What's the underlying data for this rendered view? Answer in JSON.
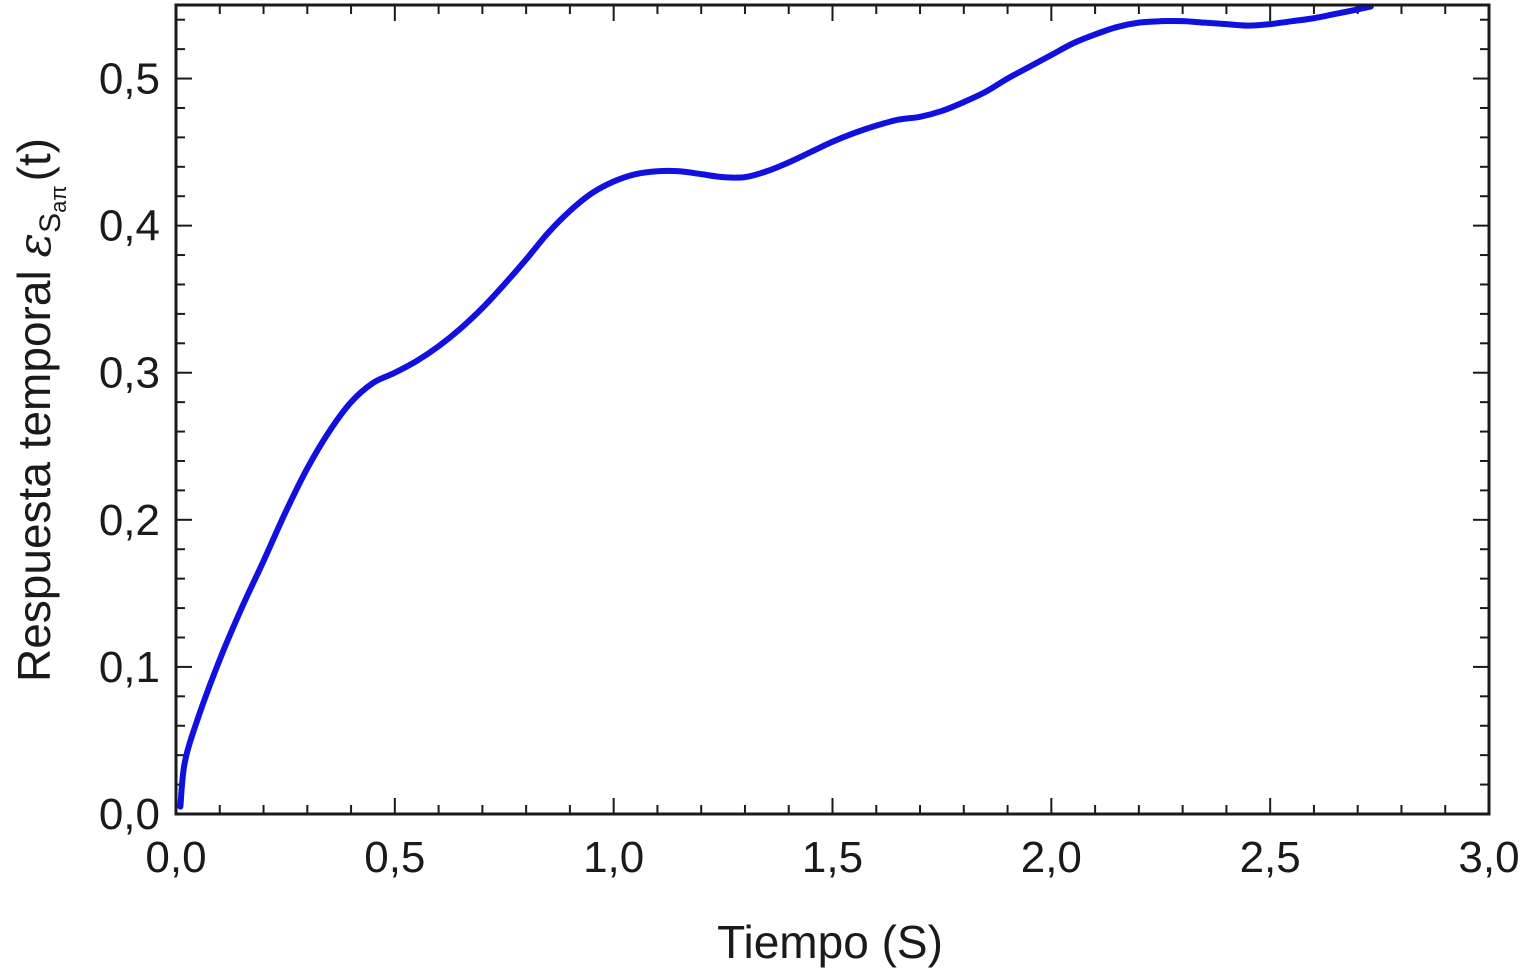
{
  "chart_data": {
    "type": "line",
    "xlabel": "Tiempo  (S)",
    "ylabel": {
      "prefix": "Respuesta temporal ",
      "symbol": "ε",
      "sub": "S",
      "subsub": "aπ",
      "suffix": "(t)"
    },
    "xlim": [
      0,
      3.0
    ],
    "ylim": [
      0,
      0.55
    ],
    "xticks": [
      0,
      0.5,
      1.0,
      1.5,
      2.0,
      2.5,
      3.0
    ],
    "xtick_labels": [
      "0,0",
      "0,5",
      "1,0",
      "1,5",
      "2,0",
      "2,5",
      "3,0"
    ],
    "yticks": [
      0,
      0.1,
      0.2,
      0.3,
      0.4,
      0.5
    ],
    "ytick_labels": [
      "0,0",
      "0,1",
      "0,2",
      "0,3",
      "0,4",
      "0,5"
    ],
    "grid": false,
    "series": [
      {
        "color": "#1010e0",
        "x": [
          0.01,
          0.02,
          0.05,
          0.1,
          0.15,
          0.2,
          0.25,
          0.3,
          0.35,
          0.4,
          0.45,
          0.5,
          0.55,
          0.6,
          0.65,
          0.7,
          0.75,
          0.8,
          0.85,
          0.9,
          0.95,
          1.0,
          1.05,
          1.1,
          1.15,
          1.2,
          1.25,
          1.3,
          1.35,
          1.4,
          1.45,
          1.5,
          1.55,
          1.6,
          1.65,
          1.7,
          1.75,
          1.8,
          1.85,
          1.9,
          1.95,
          2.0,
          2.05,
          2.1,
          2.15,
          2.2,
          2.25,
          2.3,
          2.35,
          2.4,
          2.45,
          2.5,
          2.55,
          2.6,
          2.65,
          2.7,
          2.73
        ],
        "y": [
          0.005,
          0.035,
          0.065,
          0.105,
          0.14,
          0.172,
          0.205,
          0.235,
          0.26,
          0.28,
          0.293,
          0.3,
          0.308,
          0.318,
          0.33,
          0.344,
          0.36,
          0.377,
          0.395,
          0.41,
          0.422,
          0.43,
          0.435,
          0.437,
          0.437,
          0.435,
          0.433,
          0.433,
          0.437,
          0.443,
          0.45,
          0.457,
          0.463,
          0.468,
          0.472,
          0.474,
          0.478,
          0.484,
          0.491,
          0.5,
          0.508,
          0.516,
          0.524,
          0.53,
          0.535,
          0.538,
          0.539,
          0.539,
          0.538,
          0.537,
          0.536,
          0.537,
          0.539,
          0.541,
          0.544,
          0.547,
          0.549
        ]
      }
    ]
  }
}
